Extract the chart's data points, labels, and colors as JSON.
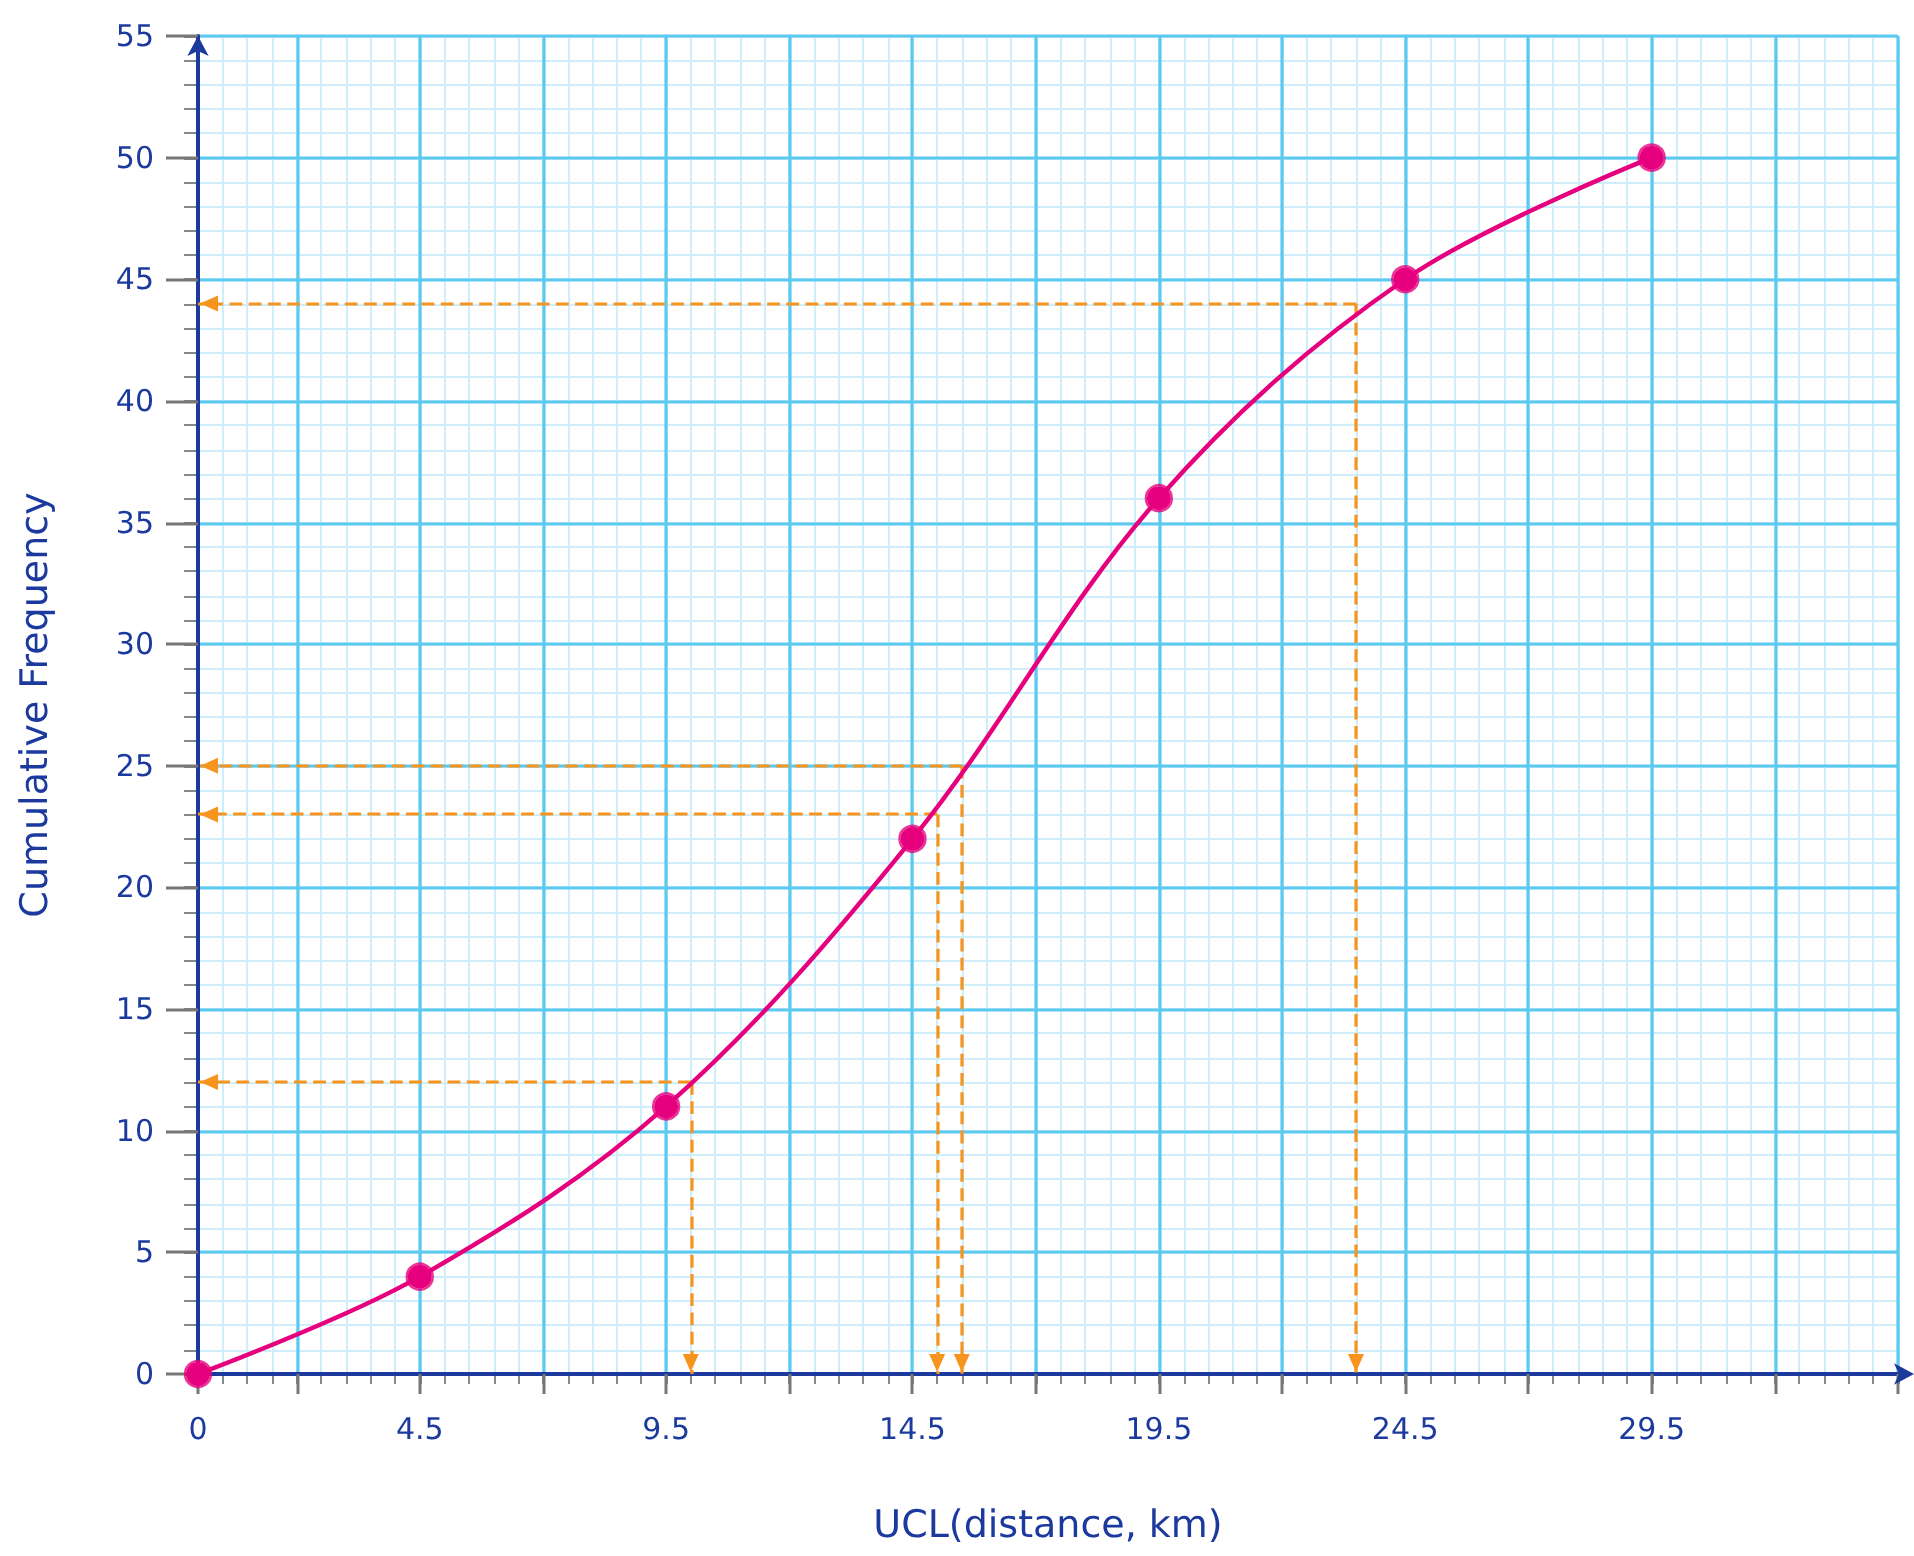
{
  "chart_data": {
    "type": "line",
    "xlabel": "UCL(distance, km)",
    "ylabel": "Cumulative Frequency",
    "xlim": [
      0,
      34.5
    ],
    "xticks": [
      0,
      {
        "value": 2,
        "label": null
      },
      4.5,
      {
        "value": 7,
        "label": null
      },
      9.5,
      {
        "value": 12,
        "label": null
      },
      14.5,
      {
        "value": 17,
        "label": null
      },
      19.5,
      {
        "value": 22,
        "label": null
      },
      24.5,
      {
        "value": 27,
        "label": null
      },
      29.5,
      {
        "value": 32,
        "label": null
      },
      {
        "value": 34.5,
        "label": null
      }
    ],
    "ylim": [
      0,
      55
    ],
    "yticks": [
      0,
      5,
      10,
      15,
      20,
      25,
      30,
      35,
      40,
      45,
      50,
      55
    ],
    "grid": true,
    "series": [
      {
        "color": "#e6007e",
        "marker": "circle",
        "x": [
          0,
          4.5,
          9.5,
          14.5,
          19.5,
          24.5,
          29.5
        ],
        "values": [
          0,
          4,
          11,
          22,
          36,
          45,
          50
        ]
      }
    ],
    "ref_lines": [
      {
        "axis": "y",
        "value": 12,
        "color": "#f7941d",
        "line_style": "dashed"
      },
      {
        "axis": "x",
        "value": 10,
        "color": "#f7941d",
        "line_style": "dashed"
      },
      {
        "axis": "y",
        "value": 23,
        "color": "#f7941d",
        "line_style": "dashed"
      },
      {
        "axis": "x",
        "value": 15,
        "color": "#f7941d",
        "line_style": "dashed"
      },
      {
        "axis": "y",
        "value": 25,
        "color": "#f7941d",
        "line_style": "dashed"
      },
      {
        "axis": "x",
        "value": 15.5,
        "color": "#f7941d",
        "line_style": "dashed"
      },
      {
        "axis": "y",
        "value": 44,
        "color": "#f7941d",
        "line_style": "dashed"
      },
      {
        "axis": "x",
        "value": 23.5,
        "color": "#f7941d",
        "line_style": "dashed"
      }
    ]
  }
}
